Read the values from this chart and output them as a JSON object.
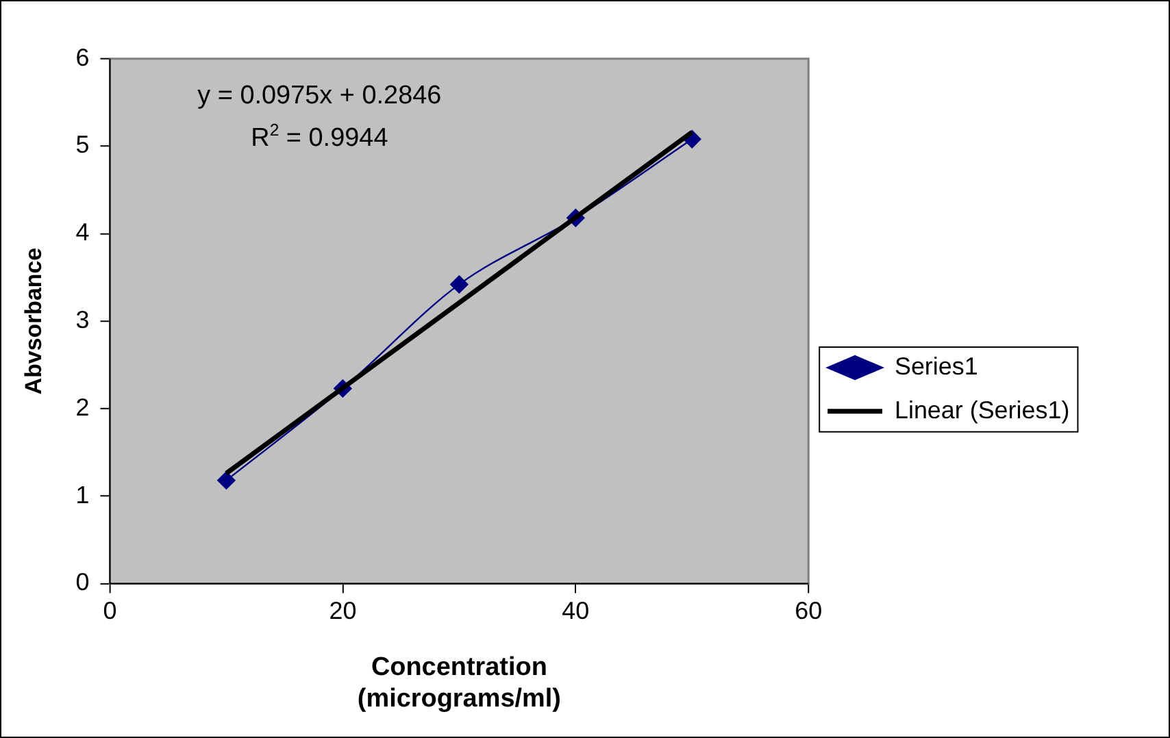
{
  "chart_data": {
    "type": "line",
    "xlabel": "Concentration (micrograms/ml)",
    "ylabel": "Abvsorbance",
    "xlim": [
      0,
      60
    ],
    "xticks": [
      0,
      20,
      40,
      60
    ],
    "ylim": [
      0,
      6
    ],
    "yticks": [
      0,
      1,
      2,
      3,
      4,
      5,
      6
    ],
    "grid": false,
    "legend": "right",
    "marker": "diamond",
    "annotations": [
      "y = 0.0975x + 0.2846",
      "R$^{2}$ = 0.9944"
    ],
    "series": [
      {
        "name": "Series1",
        "color": "#000080",
        "x": [
          10,
          20,
          30,
          40,
          50
        ],
        "values": [
          1.18,
          2.23,
          3.42,
          4.18,
          5.08
        ]
      },
      {
        "name": "Linear (Series1)",
        "color": "#000000",
        "marker": "none",
        "x": [
          10,
          50
        ],
        "values": [
          1.26,
          5.16
        ]
      }
    ]
  }
}
